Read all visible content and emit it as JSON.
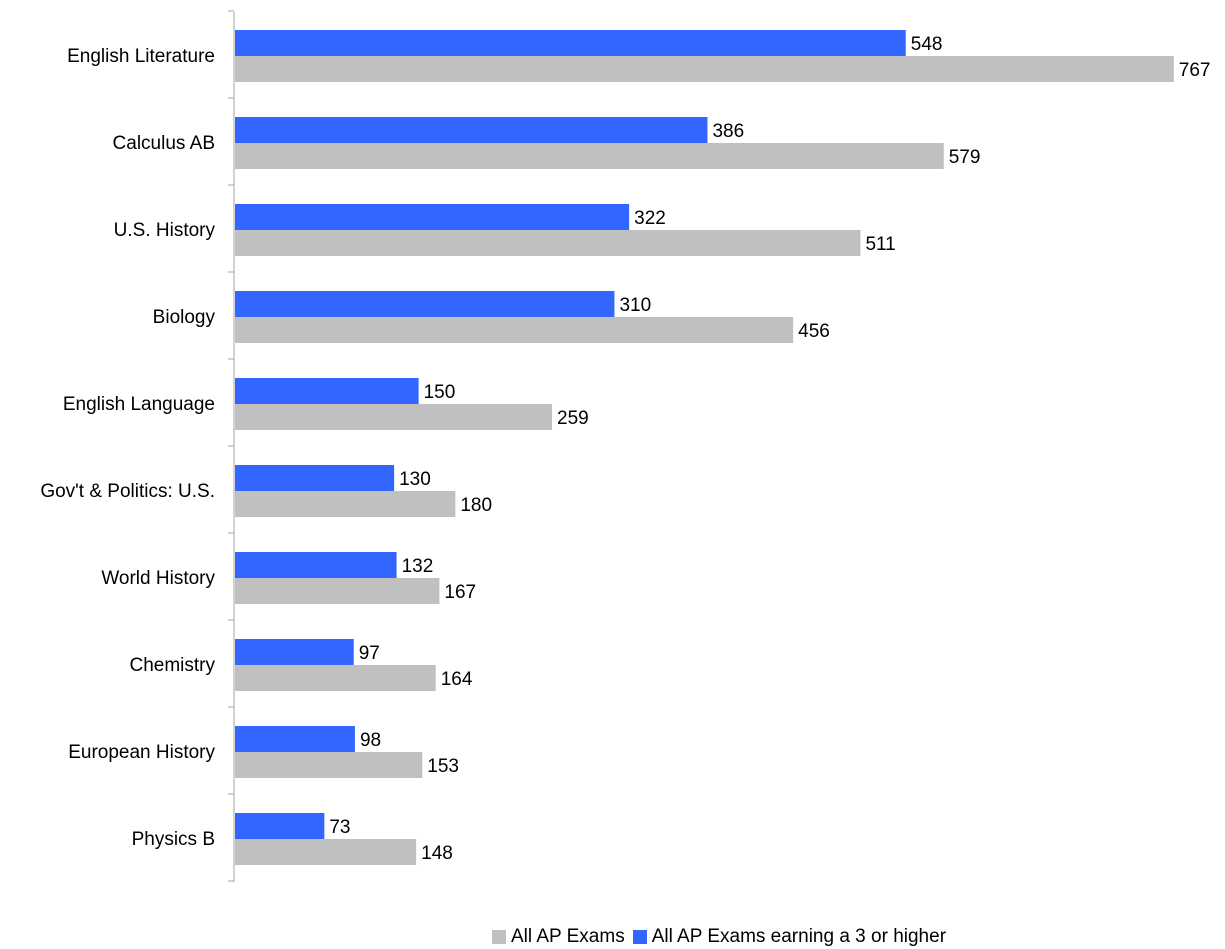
{
  "chart_data": {
    "type": "bar",
    "orientation": "horizontal",
    "categories": [
      "English Literature",
      "Calculus AB",
      "U.S. History",
      "Biology",
      "English Language",
      "Gov't & Politics: U.S.",
      "World History",
      "Chemistry",
      "European History",
      "Physics B"
    ],
    "series": [
      {
        "name": "All AP Exams earning a 3 or higher",
        "color": "#3366ff",
        "values": [
          548,
          386,
          322,
          310,
          150,
          130,
          132,
          97,
          98,
          73
        ]
      },
      {
        "name": "All AP Exams",
        "color": "#c0c0c0",
        "values": [
          767,
          579,
          511,
          456,
          259,
          180,
          167,
          164,
          153,
          148
        ]
      }
    ],
    "xlim": [
      0,
      800
    ],
    "grid": false,
    "legend_position": "bottom",
    "legend_order": [
      "All AP Exams",
      "All AP Exams earning a 3 or higher"
    ],
    "data_labels": true
  }
}
